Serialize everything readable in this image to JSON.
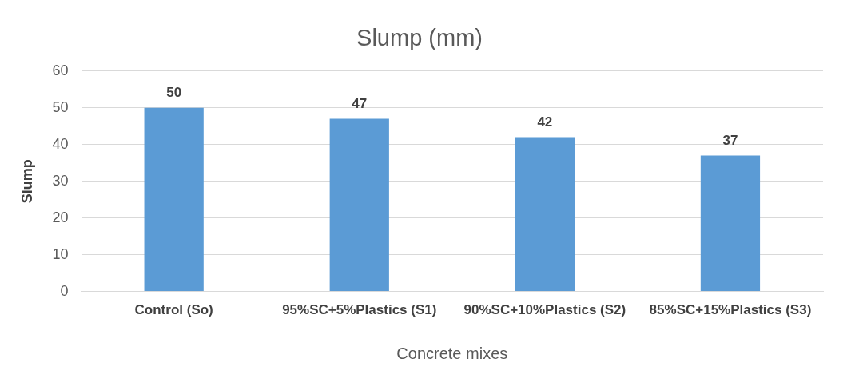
{
  "chart_data": {
    "type": "bar",
    "title": "Slump (mm)",
    "xlabel": "Concrete mixes",
    "ylabel": "Slump",
    "categories": [
      "Control (So)",
      "95%SC+5%Plastics (S1)",
      "90%SC+10%Plastics (S2)",
      "85%SC+15%Plastics (S3)"
    ],
    "values": [
      50,
      47,
      42,
      37
    ],
    "color": "#5b9bd5",
    "ylim": [
      0,
      60
    ],
    "yticks": [
      0,
      10,
      20,
      30,
      40,
      50,
      60
    ],
    "grid": "y",
    "data_labels": true
  }
}
